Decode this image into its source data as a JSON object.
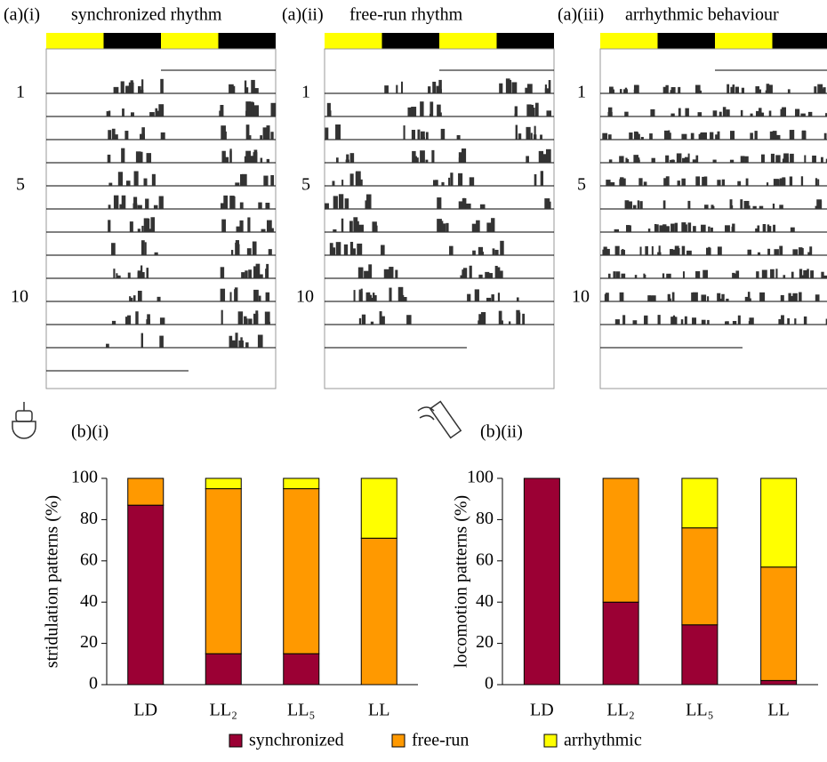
{
  "actograms": [
    {
      "label": "(a)(i)",
      "title": "synchronized rhythm"
    },
    {
      "label": "(a)(ii)",
      "title": "free-run rhythm"
    },
    {
      "label": "(a)(iii)",
      "title": "arrhythmic behaviour"
    }
  ],
  "actogram_row_labels": [
    "1",
    "5",
    "10"
  ],
  "chart_data": [
    {
      "type": "bar",
      "stacked": true,
      "label": "(b)(i)",
      "ylabel": "stridulation patterns (%)",
      "categories": [
        "LD",
        "LL₂",
        "LL₅",
        "LL"
      ],
      "series": [
        {
          "name": "synchronized",
          "color": "#9b0034",
          "values": [
            87,
            15,
            15,
            0
          ]
        },
        {
          "name": "free-run",
          "color": "#ff9900",
          "values": [
            13,
            80,
            80,
            71
          ]
        },
        {
          "name": "arrhythmic",
          "color": "#ffff00",
          "values": [
            0,
            5,
            5,
            29
          ]
        }
      ],
      "ylim": [
        0,
        100
      ],
      "yticks": [
        0,
        20,
        40,
        60,
        80,
        100
      ]
    },
    {
      "type": "bar",
      "stacked": true,
      "label": "(b)(ii)",
      "ylabel": "locomotion patterns (%)",
      "categories": [
        "LD",
        "LL₂",
        "LL₅",
        "LL"
      ],
      "series": [
        {
          "name": "synchronized",
          "color": "#9b0034",
          "values": [
            100,
            40,
            29,
            2
          ]
        },
        {
          "name": "free-run",
          "color": "#ff9900",
          "values": [
            0,
            60,
            47,
            55
          ]
        },
        {
          "name": "arrhythmic",
          "color": "#ffff00",
          "values": [
            0,
            0,
            24,
            43
          ]
        }
      ],
      "ylim": [
        0,
        100
      ],
      "yticks": [
        0,
        20,
        40,
        60,
        80,
        100
      ]
    }
  ]
}
